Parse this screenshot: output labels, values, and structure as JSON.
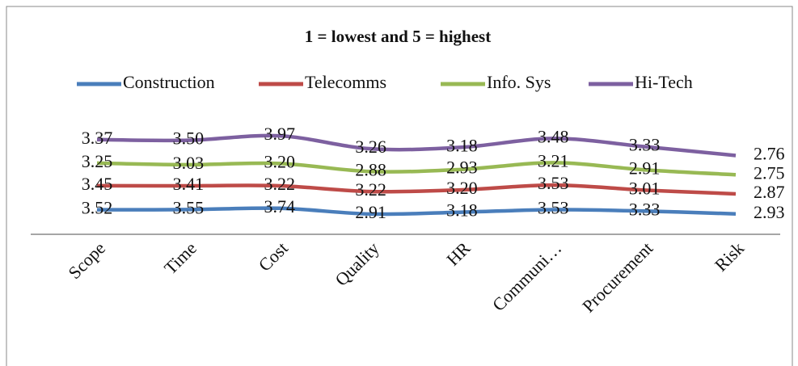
{
  "chart_data": {
    "type": "line",
    "stacked": true,
    "title": "1 = lowest and 5 = highest",
    "categories": [
      "Scope",
      "Time",
      "Cost",
      "Quality",
      "HR",
      "Communi…",
      "Procurement",
      "Risk"
    ],
    "series": [
      {
        "name": "Construction",
        "color": "#4a7ebb",
        "values": [
          3.52,
          3.55,
          3.74,
          2.91,
          3.18,
          3.53,
          3.33,
          2.93
        ],
        "value_labels": [
          "3.52",
          "3.55",
          "3.74",
          "2.91",
          "3.18",
          "3.53",
          "3.33",
          "2.93"
        ]
      },
      {
        "name": "Telecomms",
        "color": "#be4b48",
        "values": [
          3.45,
          3.41,
          3.22,
          3.22,
          3.2,
          3.53,
          3.01,
          2.87
        ],
        "value_labels": [
          "3.45",
          "3.41",
          "3.22",
          "3.22",
          "3.20",
          "3.53",
          "3.01",
          "2.87"
        ]
      },
      {
        "name": "Info. Sys",
        "color": "#98b954",
        "values": [
          3.25,
          3.03,
          3.2,
          2.88,
          2.93,
          3.21,
          2.91,
          2.75
        ],
        "value_labels": [
          "3.25",
          "3.03",
          "3.20",
          "2.88",
          "2.93",
          "3.21",
          "2.91",
          "2.75"
        ]
      },
      {
        "name": "Hi-Tech",
        "color": "#7d60a0",
        "values": [
          3.37,
          3.5,
          3.97,
          3.26,
          3.18,
          3.48,
          3.33,
          2.76
        ],
        "value_labels": [
          "3.37",
          "3.50",
          "3.97",
          "3.26",
          "3.18",
          "3.48",
          "3.33",
          "2.76"
        ]
      }
    ],
    "ylim": [
      0,
      16
    ],
    "smooth": true
  }
}
